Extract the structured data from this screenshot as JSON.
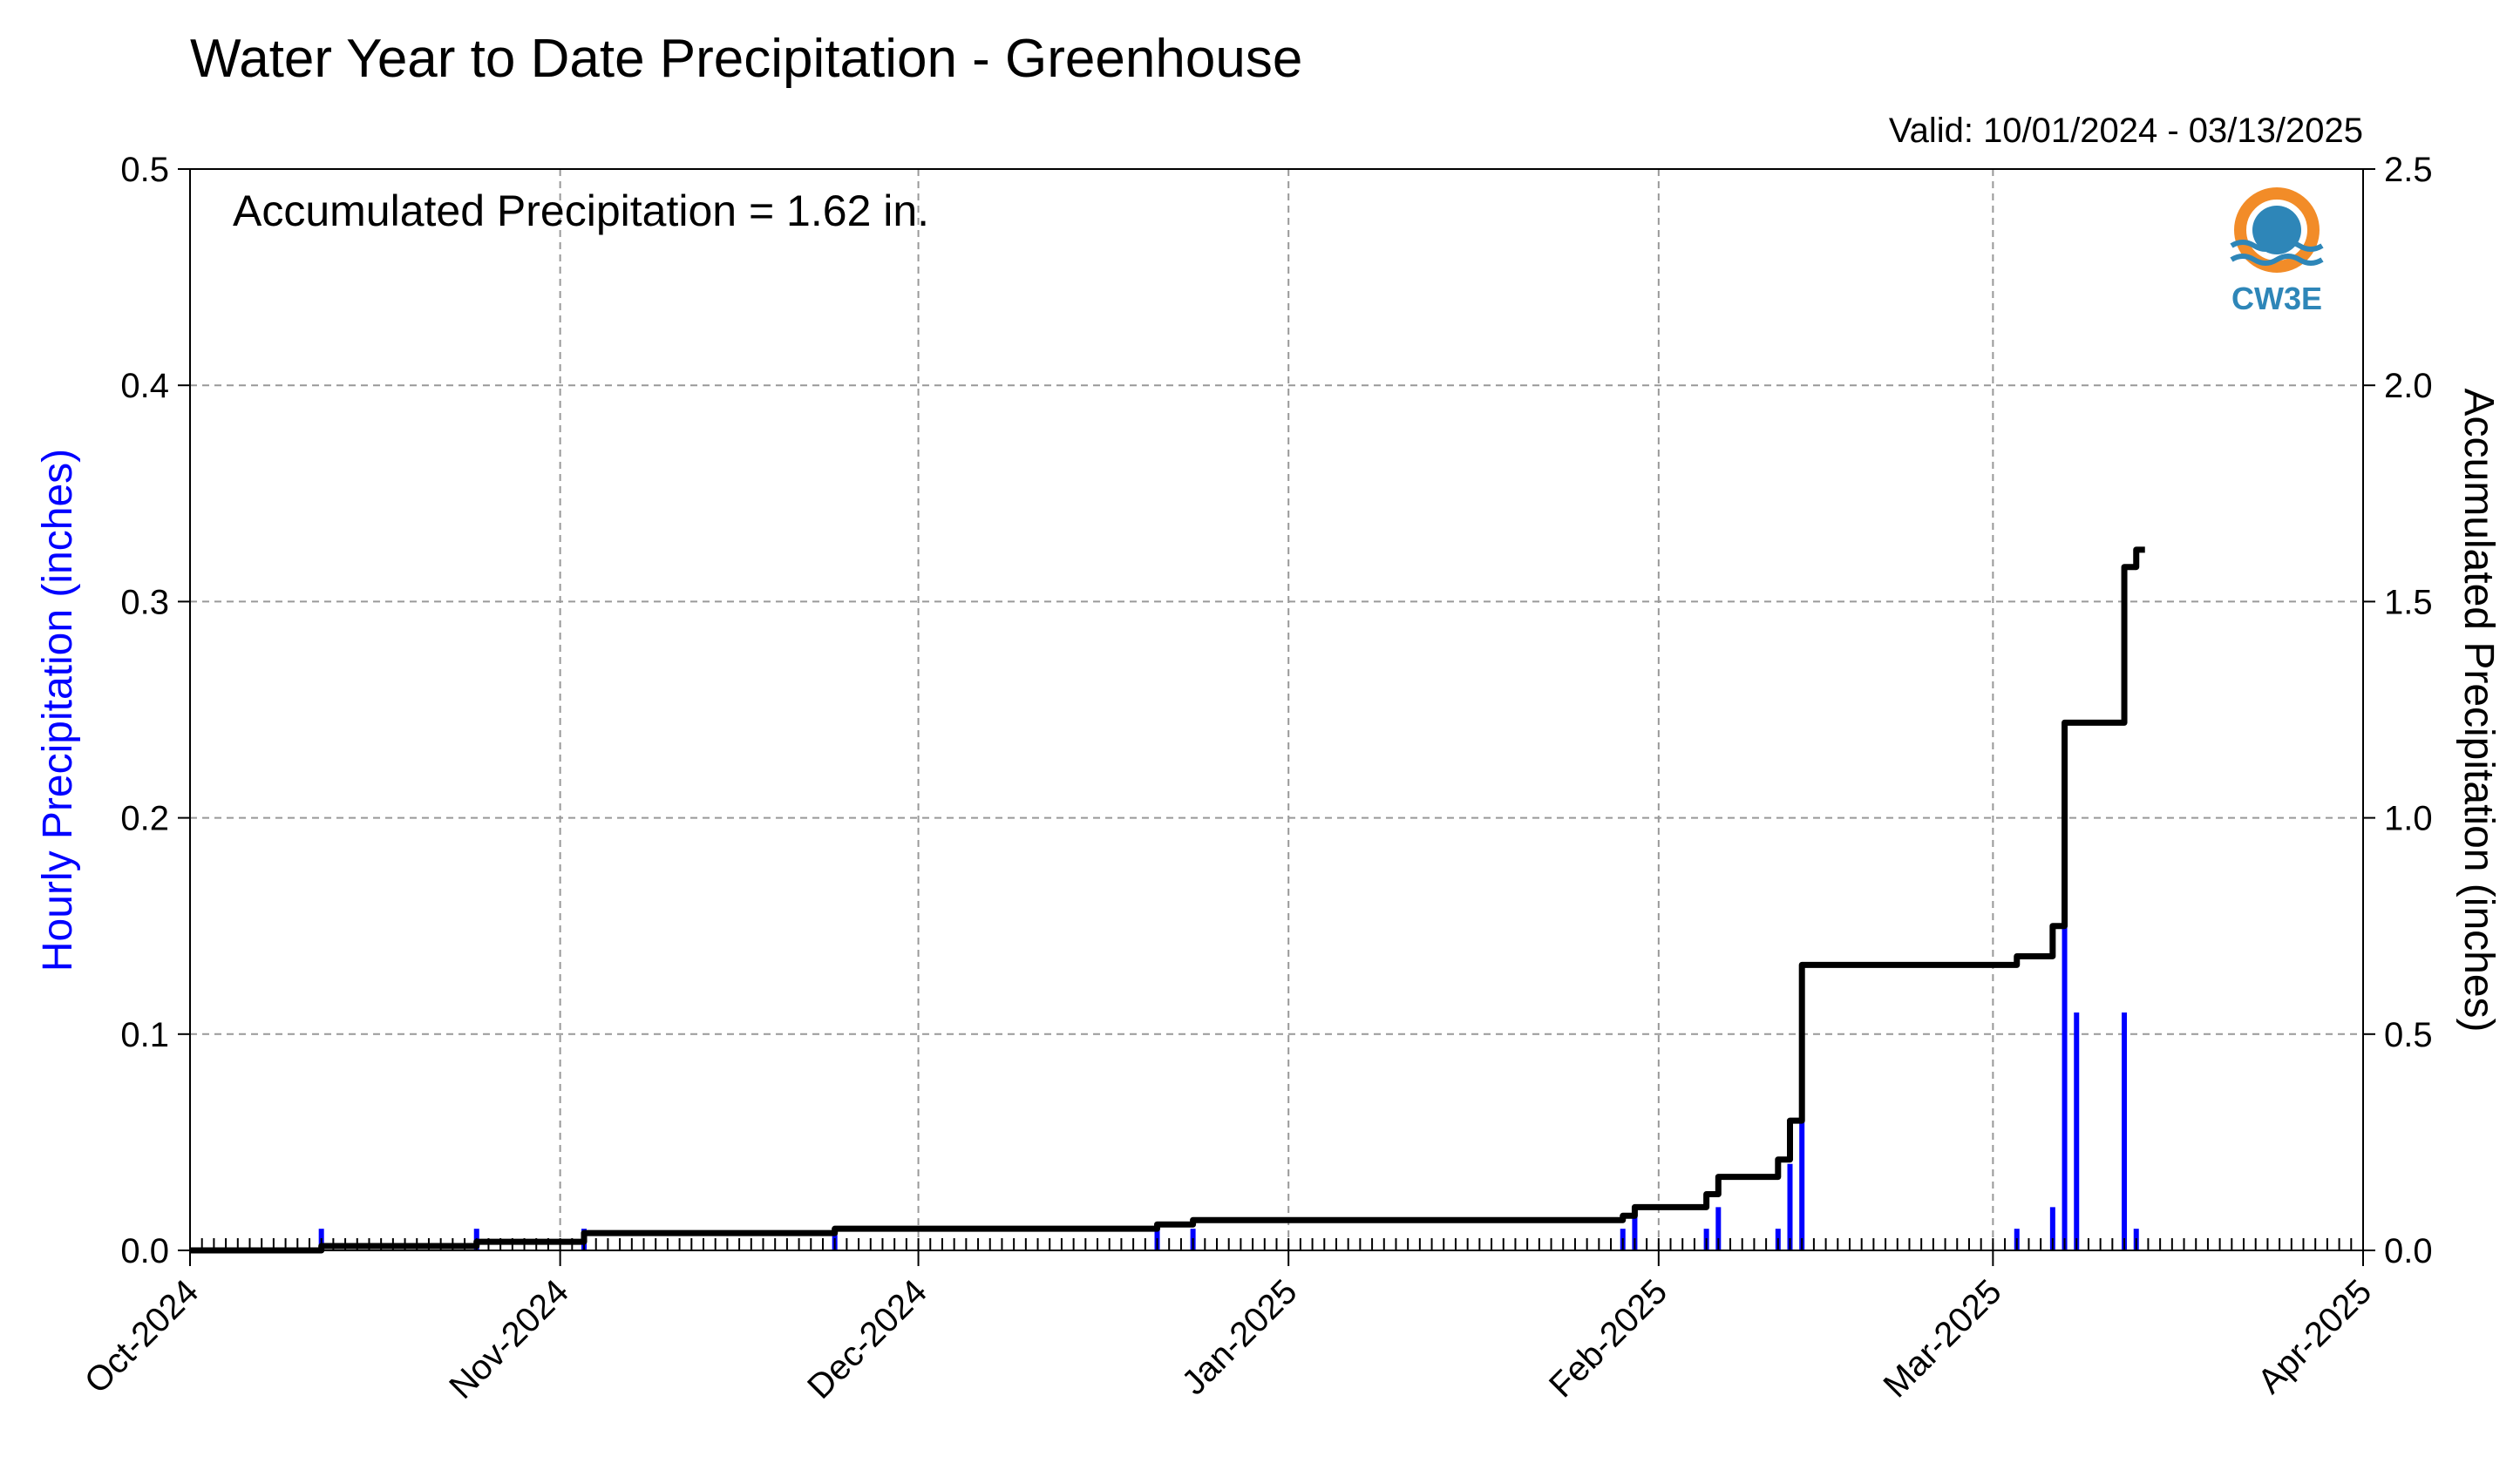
{
  "chart_data": {
    "type": "bar",
    "title": "Water Year to Date Precipitation - Greenhouse",
    "valid_text": "Valid: 10/01/2024 - 03/13/2025",
    "annotation": "Accumulated Precipitation = 1.62 in.",
    "ylabel_left": "Hourly Precipitation (inches)",
    "ylabel_right": "Accumulated Precipitation (inches)",
    "x_domain": [
      "2024-10-01",
      "2025-04-01"
    ],
    "x_ticks": [
      {
        "date": "2024-10-01",
        "label": "Oct-2024"
      },
      {
        "date": "2024-11-01",
        "label": "Nov-2024"
      },
      {
        "date": "2024-12-01",
        "label": "Dec-2024"
      },
      {
        "date": "2025-01-01",
        "label": "Jan-2025"
      },
      {
        "date": "2025-02-01",
        "label": "Feb-2025"
      },
      {
        "date": "2025-03-01",
        "label": "Mar-2025"
      },
      {
        "date": "2025-04-01",
        "label": "Apr-2025"
      }
    ],
    "ylim_left": [
      0,
      0.5
    ],
    "ylim_right": [
      0,
      2.5
    ],
    "y_ticks_left": [
      "0.0",
      "0.1",
      "0.2",
      "0.3",
      "0.4",
      "0.5"
    ],
    "y_ticks_right": [
      "0.0",
      "0.5",
      "1.0",
      "1.5",
      "2.0",
      "2.5"
    ],
    "grid": true,
    "series": [
      {
        "name": "Hourly Precipitation",
        "color": "#0000ff",
        "type": "bar",
        "points": [
          {
            "x": "2024-10-12",
            "y": 0.01
          },
          {
            "x": "2024-10-25",
            "y": 0.01
          },
          {
            "x": "2024-11-03",
            "y": 0.01
          },
          {
            "x": "2024-11-24",
            "y": 0.01
          },
          {
            "x": "2024-12-21",
            "y": 0.01
          },
          {
            "x": "2024-12-24",
            "y": 0.01
          },
          {
            "x": "2025-01-29",
            "y": 0.01
          },
          {
            "x": "2025-01-30",
            "y": 0.02
          },
          {
            "x": "2025-02-05",
            "y": 0.01
          },
          {
            "x": "2025-02-06",
            "y": 0.02
          },
          {
            "x": "2025-02-11",
            "y": 0.01
          },
          {
            "x": "2025-02-12",
            "y": 0.04
          },
          {
            "x": "2025-02-13",
            "y": 0.06
          },
          {
            "x": "2025-03-03",
            "y": 0.01
          },
          {
            "x": "2025-03-06",
            "y": 0.02
          },
          {
            "x": "2025-03-07",
            "y": 0.15
          },
          {
            "x": "2025-03-08",
            "y": 0.11
          },
          {
            "x": "2025-03-12",
            "y": 0.11
          },
          {
            "x": "2025-03-13",
            "y": 0.01
          }
        ]
      },
      {
        "name": "Accumulated Precipitation",
        "color": "#000000",
        "type": "step-line",
        "points": [
          {
            "x": "2024-10-01",
            "y": 0.0
          },
          {
            "x": "2024-10-12",
            "y": 0.01
          },
          {
            "x": "2024-10-25",
            "y": 0.02
          },
          {
            "x": "2024-11-03",
            "y": 0.04
          },
          {
            "x": "2024-11-24",
            "y": 0.05
          },
          {
            "x": "2024-12-21",
            "y": 0.06
          },
          {
            "x": "2024-12-24",
            "y": 0.07
          },
          {
            "x": "2025-01-29",
            "y": 0.08
          },
          {
            "x": "2025-01-30",
            "y": 0.1
          },
          {
            "x": "2025-02-05",
            "y": 0.13
          },
          {
            "x": "2025-02-06",
            "y": 0.17
          },
          {
            "x": "2025-02-11",
            "y": 0.21
          },
          {
            "x": "2025-02-12",
            "y": 0.3
          },
          {
            "x": "2025-02-13",
            "y": 0.66
          },
          {
            "x": "2025-03-03",
            "y": 0.68
          },
          {
            "x": "2025-03-06",
            "y": 0.75
          },
          {
            "x": "2025-03-07",
            "y": 1.22
          },
          {
            "x": "2025-03-12",
            "y": 1.58
          },
          {
            "x": "2025-03-13",
            "y": 1.62
          }
        ]
      }
    ]
  },
  "logo": {
    "text": "CW3E",
    "colors": {
      "ring": "#f28c28",
      "wave": "#2e86b8"
    }
  }
}
